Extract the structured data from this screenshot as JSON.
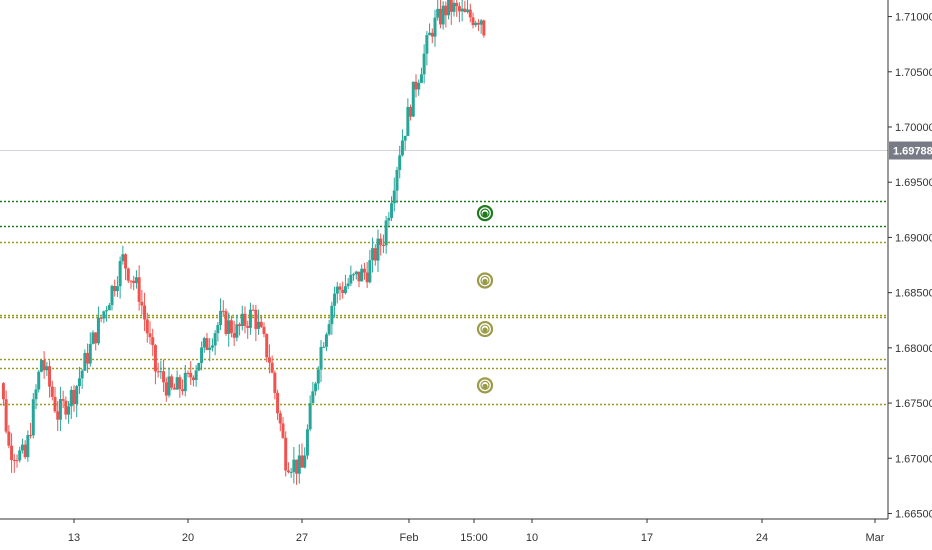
{
  "chart_data": {
    "type": "candlestick",
    "y_axis": {
      "position": "right",
      "range": [
        1.6645,
        1.7115
      ],
      "ticks": [
        "1.71000",
        "1.70500",
        "1.70000",
        "1.69500",
        "1.69000",
        "1.68500",
        "1.68000",
        "1.67500",
        "1.67000",
        "1.66500"
      ]
    },
    "x_axis": {
      "ticks": [
        "13",
        "20",
        "27",
        "Feb",
        "15:00",
        "10",
        "17",
        "24",
        "Mar"
      ]
    },
    "last_price": {
      "label": "1.69788",
      "value": 1.69788,
      "color": "#787b86",
      "line_color": "#d1d4dc"
    },
    "horizontal_levels": [
      {
        "price": 1.6933,
        "color": "#1e7a1e",
        "style": "dotted"
      },
      {
        "price": 1.691,
        "color": "#1e7a1e",
        "style": "dotted"
      },
      {
        "price": 1.6896,
        "color": "#9a9a1e",
        "style": "dotted"
      },
      {
        "price": 1.683,
        "color": "#9a9a1e",
        "style": "dotted"
      },
      {
        "price": 1.6828,
        "color": "#9a9a1e",
        "style": "dotted"
      },
      {
        "price": 1.679,
        "color": "#9a9a1e",
        "style": "dotted"
      },
      {
        "price": 1.6782,
        "color": "#9a9a1e",
        "style": "dotted"
      },
      {
        "price": 1.6749,
        "color": "#9a9a1e",
        "style": "dotted"
      }
    ],
    "markers": [
      {
        "price": 1.6922,
        "color": "#1e7a1e",
        "type": "target-circle"
      },
      {
        "price": 1.6861,
        "color": "#9a9a48",
        "type": "target-circle"
      },
      {
        "price": 1.6817,
        "color": "#9a9a48",
        "type": "target-circle"
      },
      {
        "price": 1.6766,
        "color": "#9a9a48",
        "type": "target-circle"
      }
    ],
    "colors": {
      "up": "#26a69a",
      "down": "#ef5350",
      "axis": "#333333",
      "grid": "none"
    },
    "grid": false,
    "series": [
      {
        "name": "",
        "anchors": [
          {
            "date": "2021-01-08",
            "price": 1.683
          },
          {
            "date": "2021-01-09",
            "price": 1.671
          },
          {
            "date": "2021-01-10",
            "price": 1.67
          },
          {
            "date": "2021-01-11",
            "price": 1.679
          },
          {
            "date": "2021-01-12",
            "price": 1.674
          },
          {
            "date": "2021-01-13",
            "price": 1.676
          },
          {
            "date": "2021-01-14",
            "price": 1.68
          },
          {
            "date": "2021-01-15",
            "price": 1.684
          },
          {
            "date": "2021-01-16",
            "price": 1.688
          },
          {
            "date": "2021-01-17",
            "price": 1.685
          },
          {
            "date": "2021-01-18",
            "price": 1.678
          },
          {
            "date": "2021-01-19",
            "price": 1.676
          },
          {
            "date": "2021-01-20",
            "price": 1.677
          },
          {
            "date": "2021-01-21",
            "price": 1.68
          },
          {
            "date": "2021-01-22",
            "price": 1.6825
          },
          {
            "date": "2021-01-23",
            "price": 1.6815
          },
          {
            "date": "2021-01-24",
            "price": 1.6832
          },
          {
            "date": "2021-01-25",
            "price": 1.679
          },
          {
            "date": "2021-01-26",
            "price": 1.67
          },
          {
            "date": "2021-01-27",
            "price": 1.669
          },
          {
            "date": "2021-01-28",
            "price": 1.679
          },
          {
            "date": "2021-01-29",
            "price": 1.685
          },
          {
            "date": "2021-01-30",
            "price": 1.686
          },
          {
            "date": "2021-01-31",
            "price": 1.687
          },
          {
            "date": "2021-02-01",
            "price": 1.69
          },
          {
            "date": "2021-02-02",
            "price": 1.698
          },
          {
            "date": "2021-02-03",
            "price": 1.704
          },
          {
            "date": "2021-02-04",
            "price": 1.709
          },
          {
            "date": "2021-02-05",
            "price": 1.711
          },
          {
            "date": "2021-02-06",
            "price": 1.71
          },
          {
            "date": "2021-02-07",
            "price": 1.71
          },
          {
            "date": "2021-02-08",
            "price": 1.704
          },
          {
            "date": "2021-02-09",
            "price": 1.701
          },
          {
            "date": "2021-02-10",
            "price": 1.6978
          }
        ]
      }
    ]
  }
}
